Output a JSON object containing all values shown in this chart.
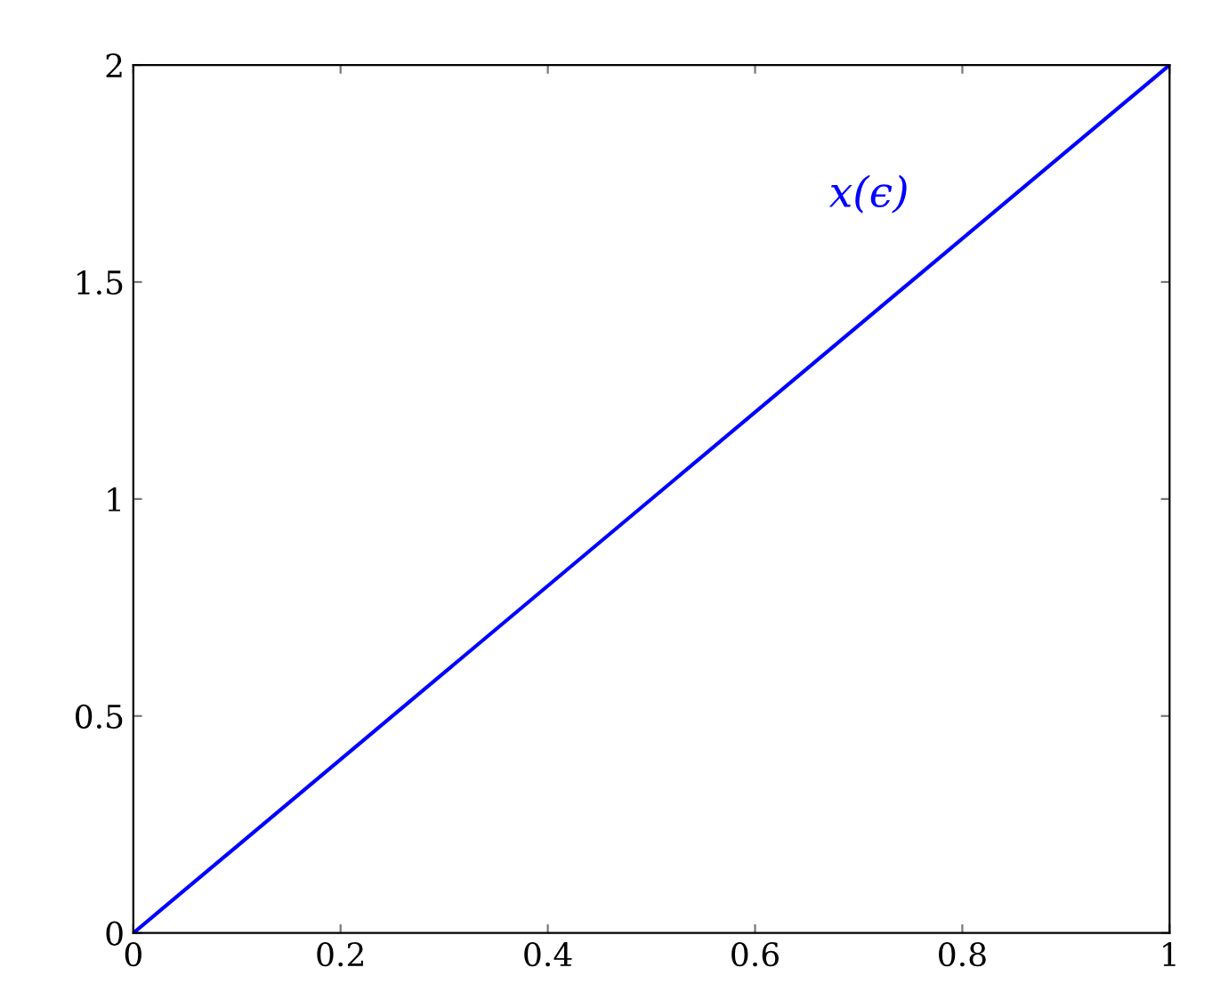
{
  "chart_data": {
    "type": "line",
    "x": [
      0,
      1
    ],
    "series": [
      {
        "name": "x(ϵ)",
        "color": "#0000ff",
        "values": [
          0,
          2
        ]
      }
    ],
    "xlim": [
      0,
      1
    ],
    "ylim": [
      0,
      2
    ],
    "xticks": [
      0,
      0.2,
      0.4,
      0.6,
      0.8,
      1
    ],
    "yticks": [
      0,
      0.5,
      1,
      1.5,
      2
    ],
    "grid": false
  }
}
